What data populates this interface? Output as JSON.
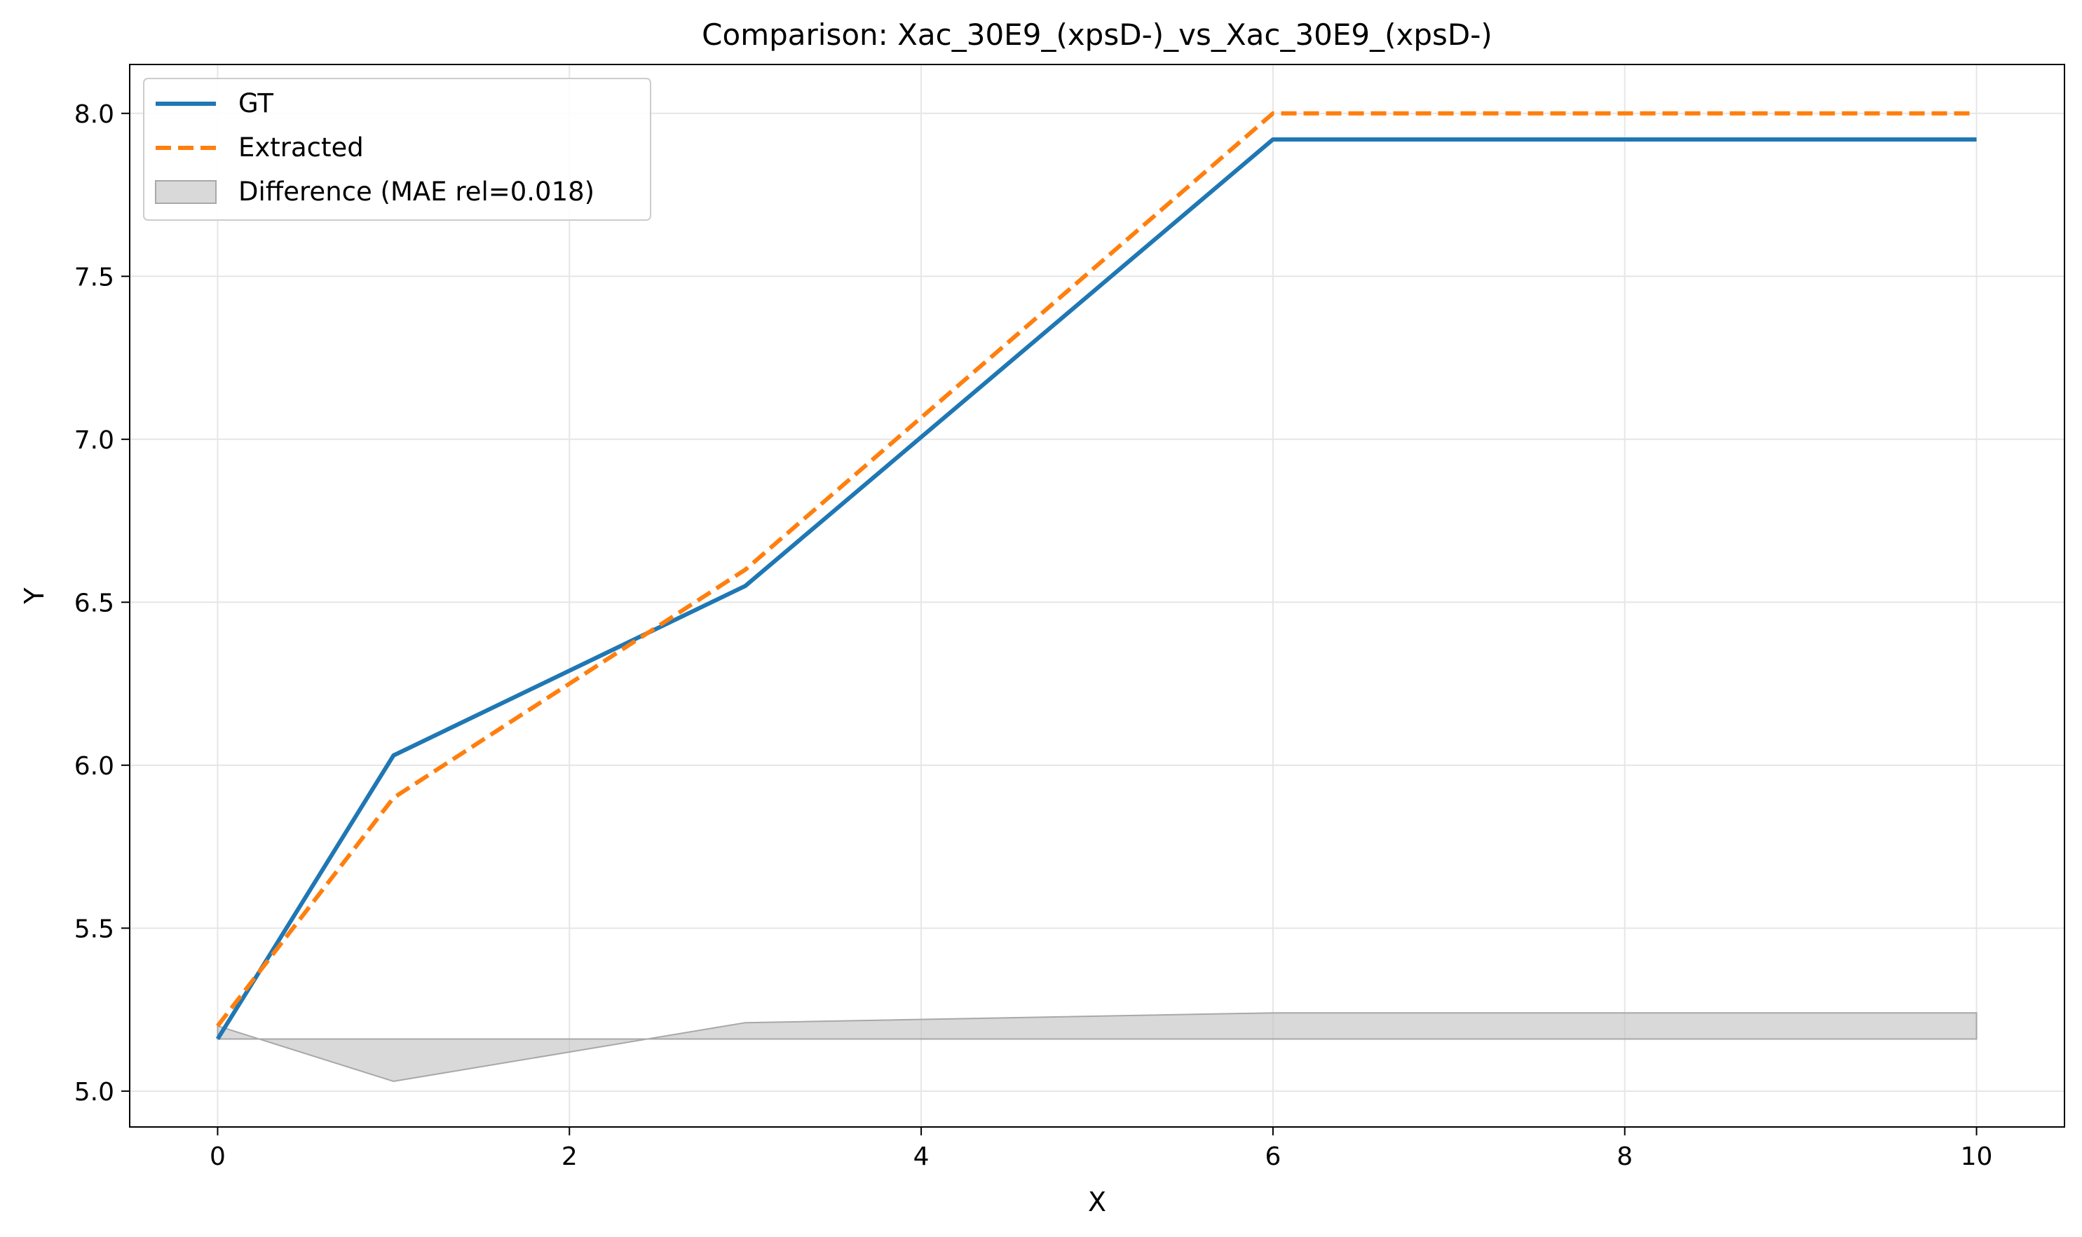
{
  "chart_data": {
    "type": "line",
    "title": "Comparison: Xac_30E9_(xpsD-)_vs_Xac_30E9_(xpsD-)",
    "xlabel": "X",
    "ylabel": "Y",
    "xlim": [
      -0.5,
      10.5
    ],
    "ylim": [
      4.89,
      8.15
    ],
    "xticks": [
      0,
      2,
      4,
      6,
      8,
      10
    ],
    "yticks": [
      5.0,
      5.5,
      6.0,
      6.5,
      7.0,
      7.5,
      8.0
    ],
    "xtick_labels": [
      "0",
      "2",
      "4",
      "6",
      "8",
      "10"
    ],
    "ytick_labels": [
      "5.0",
      "5.5",
      "6.0",
      "6.5",
      "7.0",
      "7.5",
      "8.0"
    ],
    "grid": true,
    "legend_position": "top-left",
    "series": [
      {
        "name": "GT",
        "style": "solid",
        "color": "#1f77b4",
        "x": [
          0,
          1,
          3,
          6,
          10
        ],
        "y": [
          5.16,
          6.03,
          6.55,
          7.92,
          7.92
        ]
      },
      {
        "name": "Extracted",
        "style": "dashed",
        "color": "#ff7f0e",
        "x": [
          0,
          1,
          3,
          6,
          10
        ],
        "y": [
          5.2,
          5.9,
          6.6,
          8.0,
          8.0
        ]
      }
    ],
    "difference_band": {
      "name": "Difference (MAE rel=0.018)",
      "color": "#bfbfbf",
      "baseline": 5.16,
      "x": [
        0,
        1,
        3,
        6,
        10
      ],
      "y": [
        5.2,
        5.03,
        5.21,
        5.24,
        5.24
      ]
    }
  }
}
